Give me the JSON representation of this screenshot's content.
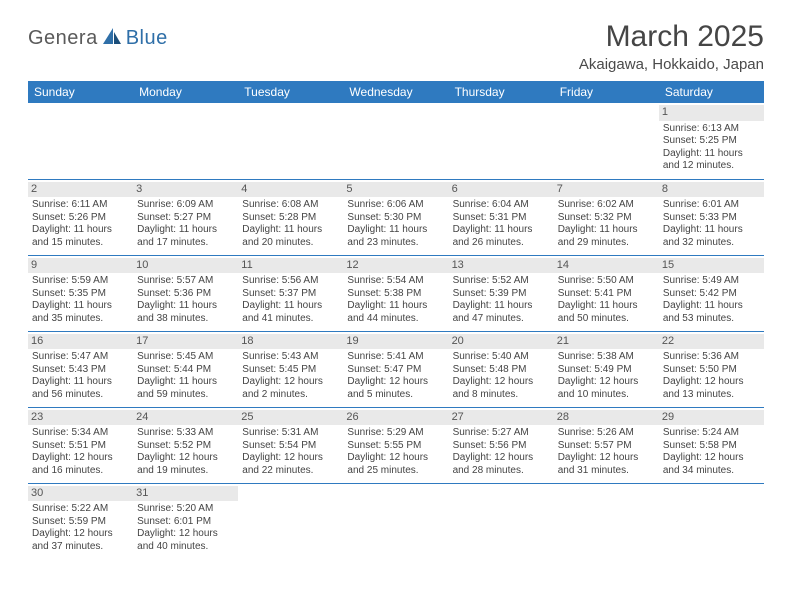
{
  "brand": {
    "word1": "Genera",
    "word2": "Blue"
  },
  "title": "March 2025",
  "location": "Akaigawa, Hokkaido, Japan",
  "colors": {
    "header_bg": "#2f7ac0",
    "header_text": "#ffffff",
    "row_divider": "#2f7ac0",
    "daynum_bg": "#e9e9e9",
    "body_text": "#444444",
    "title_text": "#454545",
    "logo_gray": "#5a5a5a",
    "logo_blue": "#2f6fa8"
  },
  "day_headers": [
    "Sunday",
    "Monday",
    "Tuesday",
    "Wednesday",
    "Thursday",
    "Friday",
    "Saturday"
  ],
  "weeks": [
    [
      {
        "n": "",
        "sr": "",
        "ss": "",
        "d1": "",
        "d2": ""
      },
      {
        "n": "",
        "sr": "",
        "ss": "",
        "d1": "",
        "d2": ""
      },
      {
        "n": "",
        "sr": "",
        "ss": "",
        "d1": "",
        "d2": ""
      },
      {
        "n": "",
        "sr": "",
        "ss": "",
        "d1": "",
        "d2": ""
      },
      {
        "n": "",
        "sr": "",
        "ss": "",
        "d1": "",
        "d2": ""
      },
      {
        "n": "",
        "sr": "",
        "ss": "",
        "d1": "",
        "d2": ""
      },
      {
        "n": "1",
        "sr": "Sunrise: 6:13 AM",
        "ss": "Sunset: 5:25 PM",
        "d1": "Daylight: 11 hours",
        "d2": "and 12 minutes."
      }
    ],
    [
      {
        "n": "2",
        "sr": "Sunrise: 6:11 AM",
        "ss": "Sunset: 5:26 PM",
        "d1": "Daylight: 11 hours",
        "d2": "and 15 minutes."
      },
      {
        "n": "3",
        "sr": "Sunrise: 6:09 AM",
        "ss": "Sunset: 5:27 PM",
        "d1": "Daylight: 11 hours",
        "d2": "and 17 minutes."
      },
      {
        "n": "4",
        "sr": "Sunrise: 6:08 AM",
        "ss": "Sunset: 5:28 PM",
        "d1": "Daylight: 11 hours",
        "d2": "and 20 minutes."
      },
      {
        "n": "5",
        "sr": "Sunrise: 6:06 AM",
        "ss": "Sunset: 5:30 PM",
        "d1": "Daylight: 11 hours",
        "d2": "and 23 minutes."
      },
      {
        "n": "6",
        "sr": "Sunrise: 6:04 AM",
        "ss": "Sunset: 5:31 PM",
        "d1": "Daylight: 11 hours",
        "d2": "and 26 minutes."
      },
      {
        "n": "7",
        "sr": "Sunrise: 6:02 AM",
        "ss": "Sunset: 5:32 PM",
        "d1": "Daylight: 11 hours",
        "d2": "and 29 minutes."
      },
      {
        "n": "8",
        "sr": "Sunrise: 6:01 AM",
        "ss": "Sunset: 5:33 PM",
        "d1": "Daylight: 11 hours",
        "d2": "and 32 minutes."
      }
    ],
    [
      {
        "n": "9",
        "sr": "Sunrise: 5:59 AM",
        "ss": "Sunset: 5:35 PM",
        "d1": "Daylight: 11 hours",
        "d2": "and 35 minutes."
      },
      {
        "n": "10",
        "sr": "Sunrise: 5:57 AM",
        "ss": "Sunset: 5:36 PM",
        "d1": "Daylight: 11 hours",
        "d2": "and 38 minutes."
      },
      {
        "n": "11",
        "sr": "Sunrise: 5:56 AM",
        "ss": "Sunset: 5:37 PM",
        "d1": "Daylight: 11 hours",
        "d2": "and 41 minutes."
      },
      {
        "n": "12",
        "sr": "Sunrise: 5:54 AM",
        "ss": "Sunset: 5:38 PM",
        "d1": "Daylight: 11 hours",
        "d2": "and 44 minutes."
      },
      {
        "n": "13",
        "sr": "Sunrise: 5:52 AM",
        "ss": "Sunset: 5:39 PM",
        "d1": "Daylight: 11 hours",
        "d2": "and 47 minutes."
      },
      {
        "n": "14",
        "sr": "Sunrise: 5:50 AM",
        "ss": "Sunset: 5:41 PM",
        "d1": "Daylight: 11 hours",
        "d2": "and 50 minutes."
      },
      {
        "n": "15",
        "sr": "Sunrise: 5:49 AM",
        "ss": "Sunset: 5:42 PM",
        "d1": "Daylight: 11 hours",
        "d2": "and 53 minutes."
      }
    ],
    [
      {
        "n": "16",
        "sr": "Sunrise: 5:47 AM",
        "ss": "Sunset: 5:43 PM",
        "d1": "Daylight: 11 hours",
        "d2": "and 56 minutes."
      },
      {
        "n": "17",
        "sr": "Sunrise: 5:45 AM",
        "ss": "Sunset: 5:44 PM",
        "d1": "Daylight: 11 hours",
        "d2": "and 59 minutes."
      },
      {
        "n": "18",
        "sr": "Sunrise: 5:43 AM",
        "ss": "Sunset: 5:45 PM",
        "d1": "Daylight: 12 hours",
        "d2": "and 2 minutes."
      },
      {
        "n": "19",
        "sr": "Sunrise: 5:41 AM",
        "ss": "Sunset: 5:47 PM",
        "d1": "Daylight: 12 hours",
        "d2": "and 5 minutes."
      },
      {
        "n": "20",
        "sr": "Sunrise: 5:40 AM",
        "ss": "Sunset: 5:48 PM",
        "d1": "Daylight: 12 hours",
        "d2": "and 8 minutes."
      },
      {
        "n": "21",
        "sr": "Sunrise: 5:38 AM",
        "ss": "Sunset: 5:49 PM",
        "d1": "Daylight: 12 hours",
        "d2": "and 10 minutes."
      },
      {
        "n": "22",
        "sr": "Sunrise: 5:36 AM",
        "ss": "Sunset: 5:50 PM",
        "d1": "Daylight: 12 hours",
        "d2": "and 13 minutes."
      }
    ],
    [
      {
        "n": "23",
        "sr": "Sunrise: 5:34 AM",
        "ss": "Sunset: 5:51 PM",
        "d1": "Daylight: 12 hours",
        "d2": "and 16 minutes."
      },
      {
        "n": "24",
        "sr": "Sunrise: 5:33 AM",
        "ss": "Sunset: 5:52 PM",
        "d1": "Daylight: 12 hours",
        "d2": "and 19 minutes."
      },
      {
        "n": "25",
        "sr": "Sunrise: 5:31 AM",
        "ss": "Sunset: 5:54 PM",
        "d1": "Daylight: 12 hours",
        "d2": "and 22 minutes."
      },
      {
        "n": "26",
        "sr": "Sunrise: 5:29 AM",
        "ss": "Sunset: 5:55 PM",
        "d1": "Daylight: 12 hours",
        "d2": "and 25 minutes."
      },
      {
        "n": "27",
        "sr": "Sunrise: 5:27 AM",
        "ss": "Sunset: 5:56 PM",
        "d1": "Daylight: 12 hours",
        "d2": "and 28 minutes."
      },
      {
        "n": "28",
        "sr": "Sunrise: 5:26 AM",
        "ss": "Sunset: 5:57 PM",
        "d1": "Daylight: 12 hours",
        "d2": "and 31 minutes."
      },
      {
        "n": "29",
        "sr": "Sunrise: 5:24 AM",
        "ss": "Sunset: 5:58 PM",
        "d1": "Daylight: 12 hours",
        "d2": "and 34 minutes."
      }
    ],
    [
      {
        "n": "30",
        "sr": "Sunrise: 5:22 AM",
        "ss": "Sunset: 5:59 PM",
        "d1": "Daylight: 12 hours",
        "d2": "and 37 minutes."
      },
      {
        "n": "31",
        "sr": "Sunrise: 5:20 AM",
        "ss": "Sunset: 6:01 PM",
        "d1": "Daylight: 12 hours",
        "d2": "and 40 minutes."
      },
      {
        "n": "",
        "sr": "",
        "ss": "",
        "d1": "",
        "d2": ""
      },
      {
        "n": "",
        "sr": "",
        "ss": "",
        "d1": "",
        "d2": ""
      },
      {
        "n": "",
        "sr": "",
        "ss": "",
        "d1": "",
        "d2": ""
      },
      {
        "n": "",
        "sr": "",
        "ss": "",
        "d1": "",
        "d2": ""
      },
      {
        "n": "",
        "sr": "",
        "ss": "",
        "d1": "",
        "d2": ""
      }
    ]
  ]
}
